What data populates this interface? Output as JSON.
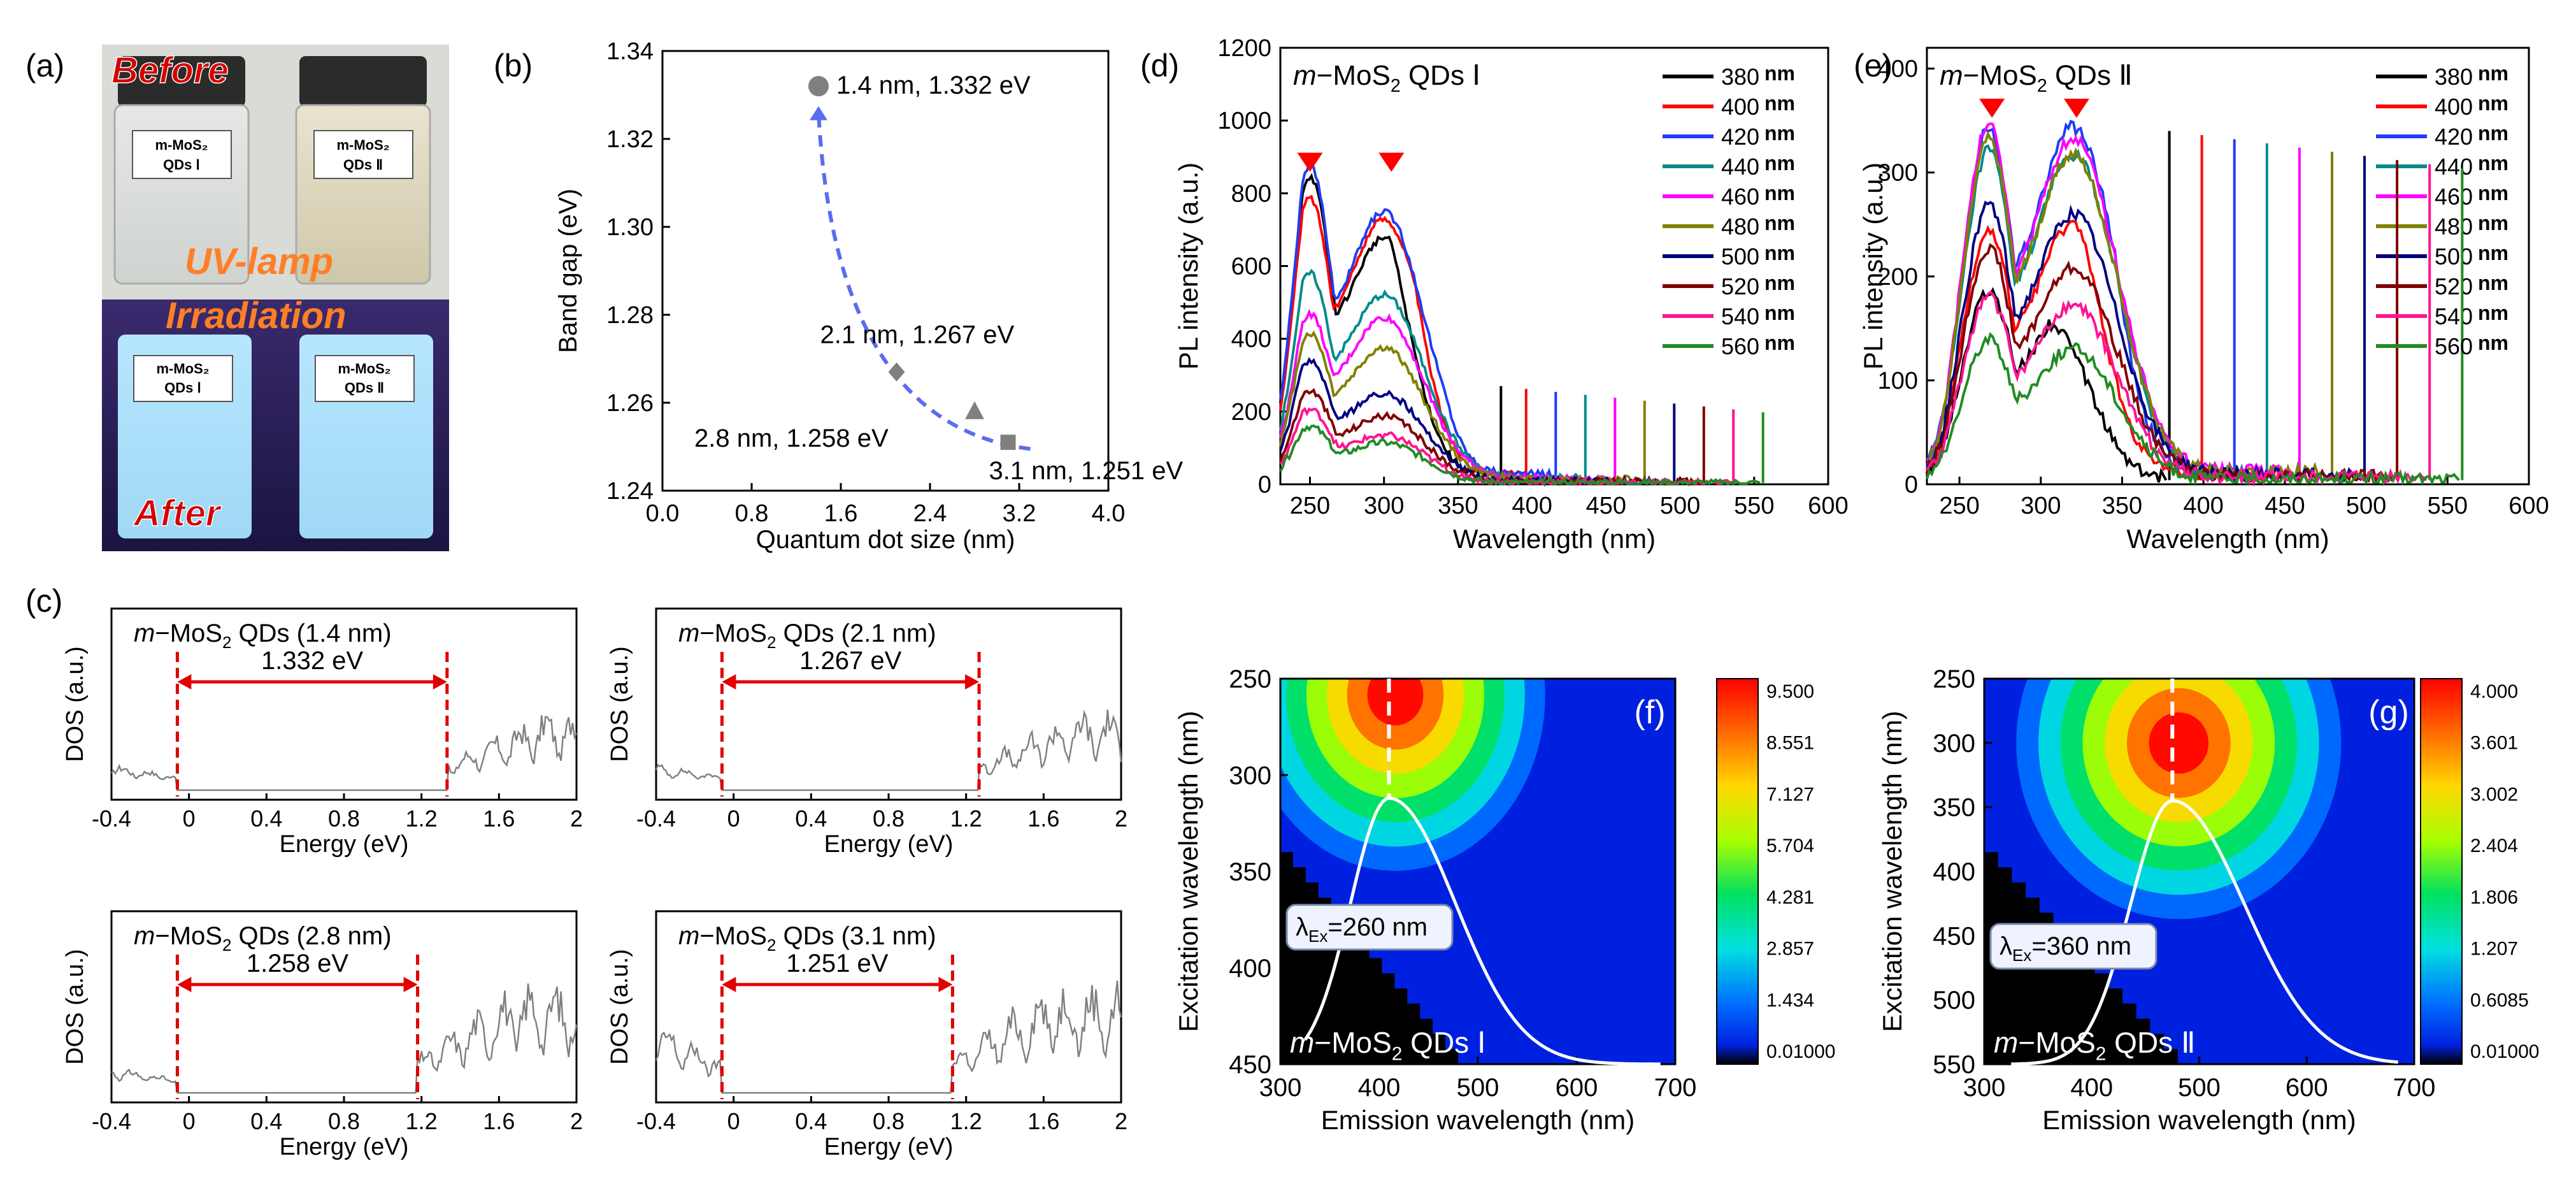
{
  "panel_labels": [
    "(a)",
    "(b)",
    "(c)",
    "(d)",
    "(e)",
    "(f)",
    "(g)"
  ],
  "photo": {
    "before": "Before",
    "uv_line1": "UV-lamp",
    "uv_line2": "Irradiation",
    "after": "After",
    "vial_label_line1": "m-MoS₂",
    "vial1_line2": "QDs Ⅰ",
    "vial2_line2": "QDs Ⅱ",
    "colors": {
      "warm": "#ff7f27",
      "red": "#d40000"
    }
  },
  "chart_data": [
    {
      "id": "b",
      "type": "scatter",
      "xlabel": "Quantum dot size (nm)",
      "ylabel": "Band gap (eV)",
      "xlim": [
        0.0,
        4.0
      ],
      "ylim": [
        1.24,
        1.34
      ],
      "xticks": [
        "0.0",
        "0.8",
        "1.6",
        "2.4",
        "3.2",
        "4.0"
      ],
      "yticks": [
        "1.24",
        "1.26",
        "1.28",
        "1.30",
        "1.32",
        "1.34"
      ],
      "points": [
        {
          "x": 1.4,
          "y": 1.332,
          "marker": "circle",
          "label": "1.4 nm,  1.332 eV"
        },
        {
          "x": 2.1,
          "y": 1.267,
          "marker": "diamond",
          "label": "2.1 nm,  1.267 eV"
        },
        {
          "x": 2.8,
          "y": 1.258,
          "marker": "triangle",
          "label": "2.8 nm,  1.258 eV"
        },
        {
          "x": 3.1,
          "y": 1.251,
          "marker": "square",
          "label": "3.1 nm,  1.251 eV"
        }
      ],
      "trend_color": "#5a6cf0"
    },
    {
      "id": "c",
      "type": "line",
      "ylabel": "DOS (a.u.)",
      "xlabel": "Energy (eV)",
      "xlim": [
        -0.4,
        2.0
      ],
      "xticks": [
        "-0.4",
        "0",
        "0.4",
        "0.8",
        "1.2",
        "1.6",
        "2"
      ],
      "panels": [
        {
          "title_pre": "m",
          "title_mid": "−MoS",
          "title_sub": "2",
          "title_post": " QDs (1.4 nm)",
          "gap_text": "1.332 eV",
          "gap_start": -0.06,
          "gap_end": 1.332
        },
        {
          "title_pre": "m",
          "title_mid": "−MoS",
          "title_sub": "2",
          "title_post": " QDs (2.1 nm)",
          "gap_text": "1.267 eV",
          "gap_start": -0.06,
          "gap_end": 1.267
        },
        {
          "title_pre": "m",
          "title_mid": "−MoS",
          "title_sub": "2",
          "title_post": " QDs (2.8 nm)",
          "gap_text": "1.258 eV",
          "gap_start": -0.06,
          "gap_end": 1.18
        },
        {
          "title_pre": "m",
          "title_mid": "−MoS",
          "title_sub": "2",
          "title_post": " QDs (3.1 nm)",
          "gap_text": "1.251 eV",
          "gap_start": -0.06,
          "gap_end": 1.13
        }
      ]
    },
    {
      "id": "d",
      "type": "line",
      "title_pre": "m",
      "title_mid": "−MoS",
      "title_sub": "2",
      "title_post": " QDs Ⅰ",
      "xlabel": "Wavelength (nm)",
      "ylabel": "PL intensity (a.u.)",
      "xlim": [
        230,
        600
      ],
      "ylim": [
        0,
        1200
      ],
      "xticks": [
        "250",
        "300",
        "350",
        "400",
        "450",
        "500",
        "550",
        "600"
      ],
      "yticks": [
        "0",
        "200",
        "400",
        "600",
        "800",
        "1000",
        "1200"
      ],
      "arrows_x": [
        250,
        305
      ],
      "series": [
        {
          "name": "380",
          "unit": "nm",
          "color": "#000000",
          "peak1": 820,
          "peak2": 650,
          "cut": 375
        },
        {
          "name": "400",
          "unit": "nm",
          "color": "#ff0000",
          "peak1": 760,
          "peak2": 700,
          "cut": 392
        },
        {
          "name": "420",
          "unit": "nm",
          "color": "#1f3df5",
          "peak1": 845,
          "peak2": 720,
          "cut": 412
        },
        {
          "name": "440",
          "unit": "nm",
          "color": "#008b8b",
          "peak1": 560,
          "peak2": 500,
          "cut": 432
        },
        {
          "name": "460",
          "unit": "nm",
          "color": "#ff00ff",
          "peak1": 450,
          "peak2": 440,
          "cut": 452
        },
        {
          "name": "480",
          "unit": "nm",
          "color": "#808000",
          "peak1": 400,
          "peak2": 360,
          "cut": 472
        },
        {
          "name": "500",
          "unit": "nm",
          "color": "#000080",
          "peak1": 330,
          "peak2": 240,
          "cut": 492
        },
        {
          "name": "520",
          "unit": "nm",
          "color": "#800000",
          "peak1": 250,
          "peak2": 180,
          "cut": 512
        },
        {
          "name": "540",
          "unit": "nm",
          "color": "#ff1493",
          "peak1": 200,
          "peak2": 130,
          "cut": 532
        },
        {
          "name": "560",
          "unit": "nm",
          "color": "#228b22",
          "peak1": 155,
          "peak2": 110,
          "cut": 552
        }
      ]
    },
    {
      "id": "e",
      "type": "line",
      "title_pre": "m",
      "title_mid": "−MoS",
      "title_sub": "2",
      "title_post": " QDs Ⅱ",
      "xlabel": "Wavelength (nm)",
      "ylabel": "PL intensity (a.u.)",
      "xlim": [
        230,
        600
      ],
      "ylim": [
        0,
        420
      ],
      "xticks": [
        "250",
        "300",
        "350",
        "400",
        "450",
        "500",
        "550",
        "600"
      ],
      "yticks": [
        "0",
        "100",
        "200",
        "300",
        "400"
      ],
      "arrows_x": [
        270,
        322
      ],
      "series": [
        {
          "name": "380",
          "unit": "nm",
          "color": "#000000",
          "peak1": 180,
          "peak2": 170,
          "cut": 375
        },
        {
          "name": "400",
          "unit": "nm",
          "color": "#ff0000",
          "peak1": 235,
          "peak2": 240,
          "cut": 395
        },
        {
          "name": "420",
          "unit": "nm",
          "color": "#1f3df5",
          "peak1": 330,
          "peak2": 330,
          "cut": 415
        },
        {
          "name": "440",
          "unit": "nm",
          "color": "#008b8b",
          "peak1": 310,
          "peak2": 305,
          "cut": 435
        },
        {
          "name": "460",
          "unit": "nm",
          "color": "#ff00ff",
          "peak1": 335,
          "peak2": 320,
          "cut": 455
        },
        {
          "name": "480",
          "unit": "nm",
          "color": "#808000",
          "peak1": 320,
          "peak2": 305,
          "cut": 475
        },
        {
          "name": "500",
          "unit": "nm",
          "color": "#000080",
          "peak1": 260,
          "peak2": 250,
          "cut": 495
        },
        {
          "name": "520",
          "unit": "nm",
          "color": "#800000",
          "peak1": 220,
          "peak2": 200,
          "cut": 515
        },
        {
          "name": "540",
          "unit": "nm",
          "color": "#ff1493",
          "peak1": 175,
          "peak2": 165,
          "cut": 535
        },
        {
          "name": "560",
          "unit": "nm",
          "color": "#228b22",
          "peak1": 135,
          "peak2": 125,
          "cut": 555
        }
      ]
    },
    {
      "id": "f",
      "type": "heatmap",
      "title_pre": "m",
      "title_mid": "−MoS",
      "title_sub": "2",
      "title_post": " QDs Ⅰ",
      "xlabel": "Emission wavelength (nm)",
      "ylabel": "Excitation wavelength (nm)",
      "xlim": [
        300,
        700
      ],
      "ylim": [
        250,
        450
      ],
      "xticks": [
        "300",
        "400",
        "500",
        "600",
        "700"
      ],
      "yticks": [
        "250",
        "300",
        "350",
        "400",
        "450"
      ],
      "colorbar": [
        "9.500",
        "8.551",
        "7.127",
        "5.704",
        "4.281",
        "2.857",
        "1.434",
        "0.01000"
      ],
      "lambda_main": "λ",
      "lambda_sub": "Ex",
      "lambda_rest": "=260 nm",
      "peak_em": 410,
      "peak_ex": 312,
      "hot_ex": 265
    },
    {
      "id": "g",
      "type": "heatmap",
      "title_pre": "m",
      "title_mid": "−MoS",
      "title_sub": "2",
      "title_post": " QDs Ⅱ",
      "xlabel": "Emission wavelength (nm)",
      "ylabel": "Excitation wavelength (nm)",
      "xlim": [
        300,
        700
      ],
      "ylim": [
        250,
        550
      ],
      "xticks": [
        "300",
        "400",
        "500",
        "600",
        "700"
      ],
      "yticks": [
        "250",
        "300",
        "350",
        "400",
        "450",
        "500",
        "550"
      ],
      "colorbar": [
        "4.000",
        "3.601",
        "3.002",
        "2.404",
        "1.806",
        "1.207",
        "0.6085",
        "0.01000"
      ],
      "lambda_main": "λ",
      "lambda_sub": "Ex",
      "lambda_rest": "=360 nm",
      "peak_em": 475,
      "peak_ex": 345,
      "hot_ex": 310
    }
  ]
}
